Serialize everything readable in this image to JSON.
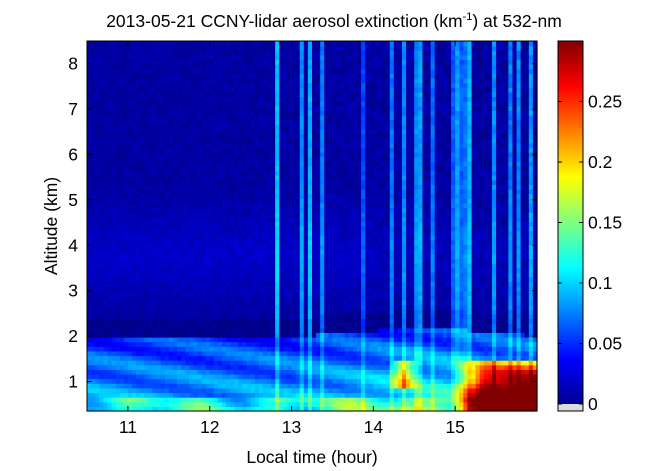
{
  "chart_data": {
    "type": "heatmap",
    "title": {
      "prefix": "2013-05-21 CCNY-lidar aerosol extinction (km",
      "superscript": "-1",
      "suffix": ") at 532-nm"
    },
    "xlabel": "Local time (hour)",
    "ylabel": "Altitude (km)",
    "xlim": [
      10.5,
      16.0
    ],
    "ylim": [
      0.35,
      8.5
    ],
    "xticks": [
      11,
      12,
      13,
      14,
      15
    ],
    "xtick_labels": [
      "11",
      "12",
      "13",
      "14",
      "15"
    ],
    "yticks": [
      1,
      2,
      3,
      4,
      5,
      6,
      7,
      8
    ],
    "ytick_labels": [
      "1",
      "2",
      "3",
      "4",
      "5",
      "6",
      "7",
      "8"
    ],
    "colorbar": {
      "colormap": "jet",
      "min": 0,
      "max": 0.3,
      "ticks": [
        0,
        0.05,
        0.1,
        0.15,
        0.2,
        0.25
      ],
      "tick_labels": [
        "0",
        "0.05",
        "0.1",
        "0.15",
        "0.2",
        "0.25"
      ],
      "nodata_color": "#dcdcdc"
    },
    "features": {
      "boundary_layer_top_km": [
        [
          10.5,
          2.0
        ],
        [
          11.5,
          2.0
        ],
        [
          12.5,
          1.95
        ],
        [
          13.5,
          2.05
        ],
        [
          14.5,
          2.2
        ],
        [
          15.5,
          2.1
        ],
        [
          16.0,
          2.0
        ]
      ],
      "dense_aerosol_region": {
        "time_start": 15.0,
        "time_end": 16.0,
        "alt_max_km": 1.5,
        "peak_extinction": 0.3
      },
      "background_free_troposphere": 0.01
    }
  }
}
